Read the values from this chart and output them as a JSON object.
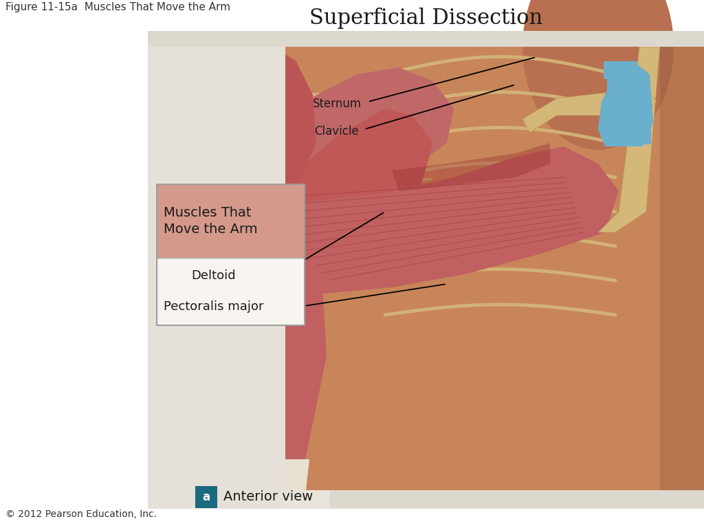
{
  "figure_label": "Figure 11-15a  Muscles That Move the Arm",
  "title": "Superficial Dissection",
  "title_fontsize": 22,
  "title_color": "#1a1a1a",
  "background_color": "#ffffff",
  "panel_bg": "#ddd8ce",
  "footer_a_box_color": "#1a6b80",
  "footer_a_text": "a",
  "footer_view": "Anterior view",
  "footer_copyright": "© 2012 Pearson Education, Inc.",
  "footer_fontsize": 14,
  "figure_label_fontsize": 11,
  "skin_color": "#c8855a",
  "skin_shadow": "#a0623a",
  "muscle_color": "#c85050",
  "muscle_dark": "#9b3030",
  "muscle_light": "#e08080",
  "bone_color": "#d4b87a",
  "bone_dark": "#b89050",
  "cartilage_color": "#6aafcc",
  "neck_color": "#b87050"
}
